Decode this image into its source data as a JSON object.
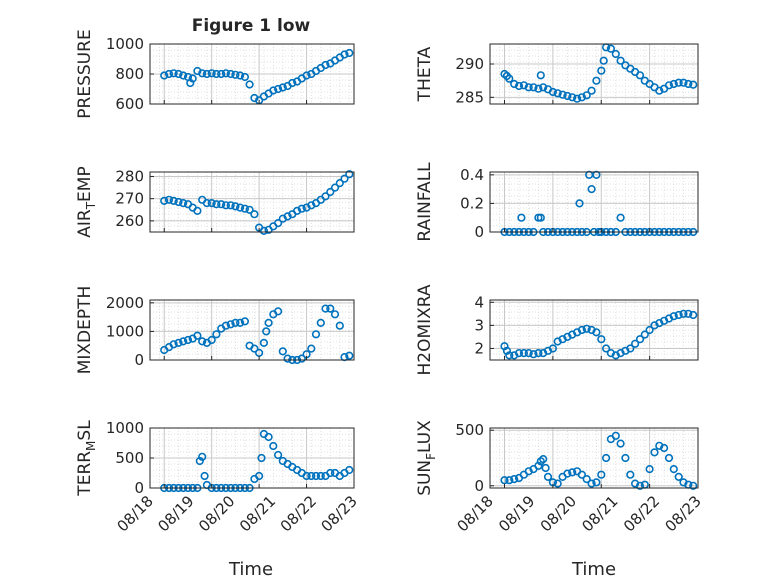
{
  "figure": {
    "title": "Figure 1 low",
    "xtick_labels": [
      "08/18",
      "08/19",
      "08/20",
      "08/21",
      "08/22",
      "08/23"
    ],
    "xlabel": "Time",
    "marker_color": "#0072BD"
  },
  "chart_data": [
    {
      "type": "scatter",
      "ylabel": "PRESSURE",
      "ylim": [
        600,
        1000
      ],
      "yticks": [
        600,
        800,
        1000
      ],
      "xlim": [
        0.7,
        5
      ],
      "x": [
        1.0,
        1.1,
        1.2,
        1.3,
        1.4,
        1.5,
        1.55,
        1.6,
        1.7,
        1.8,
        1.9,
        2.0,
        2.1,
        2.2,
        2.3,
        2.4,
        2.5,
        2.6,
        2.7,
        2.8,
        2.9,
        3.0,
        3.1,
        3.2,
        3.3,
        3.4,
        3.5,
        3.6,
        3.7,
        3.8,
        3.9,
        4.0,
        4.1,
        4.2,
        4.3,
        4.4,
        4.5,
        4.6,
        4.7,
        4.8,
        4.9
      ],
      "y": [
        790,
        800,
        805,
        800,
        790,
        780,
        740,
        770,
        820,
        805,
        800,
        805,
        800,
        800,
        805,
        800,
        795,
        790,
        780,
        730,
        640,
        625,
        650,
        670,
        690,
        700,
        710,
        720,
        740,
        750,
        770,
        790,
        800,
        820,
        840,
        860,
        870,
        890,
        910,
        930,
        940
      ]
    },
    {
      "type": "scatter",
      "ylabel": "THETA",
      "ylim": [
        284,
        293
      ],
      "yticks": [
        285,
        290
      ],
      "xlim": [
        0.7,
        5
      ],
      "x": [
        1.0,
        1.05,
        1.1,
        1.2,
        1.3,
        1.4,
        1.5,
        1.6,
        1.7,
        1.75,
        1.8,
        1.9,
        2.0,
        2.1,
        2.2,
        2.3,
        2.4,
        2.5,
        2.6,
        2.7,
        2.8,
        2.9,
        3.0,
        3.05,
        3.1,
        3.2,
        3.3,
        3.4,
        3.5,
        3.6,
        3.7,
        3.8,
        3.9,
        4.0,
        4.1,
        4.2,
        4.3,
        4.4,
        4.5,
        4.6,
        4.7,
        4.8,
        4.9
      ],
      "y": [
        288.5,
        288.2,
        287.8,
        287.0,
        286.7,
        286.8,
        286.5,
        286.5,
        286.3,
        288.3,
        286.5,
        286.2,
        285.8,
        285.6,
        285.4,
        285.2,
        285.0,
        284.8,
        285.0,
        285.3,
        286.0,
        287.5,
        289.0,
        290.5,
        292.5,
        292.3,
        291.5,
        290.5,
        289.8,
        289.3,
        288.8,
        288.3,
        287.5,
        287.0,
        286.5,
        286.0,
        286.3,
        286.8,
        287.0,
        287.2,
        287.2,
        287.0,
        286.9
      ]
    },
    {
      "type": "scatter",
      "ylabel": "AIR_TEMP",
      "ylim": [
        255,
        282
      ],
      "yticks": [
        260,
        270,
        280
      ],
      "xlim": [
        0.7,
        5
      ],
      "x": [
        1.0,
        1.1,
        1.2,
        1.3,
        1.4,
        1.5,
        1.6,
        1.7,
        1.8,
        1.9,
        2.0,
        2.1,
        2.2,
        2.3,
        2.4,
        2.5,
        2.6,
        2.7,
        2.8,
        2.9,
        3.0,
        3.1,
        3.2,
        3.3,
        3.4,
        3.5,
        3.6,
        3.7,
        3.8,
        3.9,
        4.0,
        4.1,
        4.2,
        4.3,
        4.4,
        4.5,
        4.6,
        4.7,
        4.8,
        4.9
      ],
      "y": [
        269,
        269.5,
        269,
        268.5,
        268,
        267.5,
        266,
        264.5,
        269.5,
        268,
        268,
        267.5,
        267.5,
        267,
        267,
        266.5,
        266,
        265.5,
        265,
        263,
        257,
        255.5,
        256,
        257.5,
        259,
        261,
        262,
        263,
        264.5,
        265.5,
        266,
        267,
        268,
        269.5,
        271,
        273,
        275,
        277,
        279,
        281
      ]
    },
    {
      "type": "scatter",
      "ylabel": "RAINFALL",
      "ylim": [
        0,
        0.42
      ],
      "yticks": [
        0,
        0.2,
        0.4
      ],
      "xlim": [
        0.7,
        5
      ],
      "x": [
        1.0,
        1.1,
        1.2,
        1.3,
        1.35,
        1.4,
        1.5,
        1.6,
        1.7,
        1.75,
        1.8,
        1.9,
        2.0,
        2.1,
        2.2,
        2.3,
        2.4,
        2.5,
        2.55,
        2.6,
        2.7,
        2.75,
        2.8,
        2.85,
        2.9,
        2.95,
        3.0,
        3.1,
        3.2,
        3.3,
        3.4,
        3.5,
        3.6,
        3.7,
        3.8,
        3.9,
        4.0,
        4.1,
        4.2,
        4.3,
        4.4,
        4.5,
        4.6,
        4.7,
        4.8,
        4.9
      ],
      "y": [
        0,
        0,
        0,
        0,
        0.1,
        0,
        0,
        0,
        0.1,
        0.1,
        0,
        0,
        0,
        0,
        0,
        0,
        0,
        0,
        0.2,
        0,
        0,
        0.4,
        0.3,
        0,
        0.4,
        0,
        0,
        0,
        0,
        0,
        0.1,
        0,
        0,
        0,
        0,
        0,
        0,
        0,
        0,
        0,
        0,
        0,
        0,
        0,
        0,
        0
      ]
    },
    {
      "type": "scatter",
      "ylabel": "MIXDEPTH",
      "ylim": [
        0,
        2100
      ],
      "yticks": [
        0,
        1000,
        2000
      ],
      "xlim": [
        0.7,
        5
      ],
      "x": [
        1.0,
        1.1,
        1.2,
        1.3,
        1.4,
        1.5,
        1.6,
        1.7,
        1.8,
        1.9,
        2.0,
        2.1,
        2.2,
        2.3,
        2.4,
        2.5,
        2.6,
        2.7,
        2.8,
        2.9,
        3.0,
        3.1,
        3.15,
        3.2,
        3.3,
        3.4,
        3.5,
        3.6,
        3.7,
        3.8,
        3.9,
        4.0,
        4.1,
        4.2,
        4.3,
        4.4,
        4.5,
        4.6,
        4.7,
        4.8,
        4.9
      ],
      "y": [
        350,
        450,
        550,
        600,
        650,
        700,
        750,
        850,
        650,
        600,
        700,
        900,
        1100,
        1200,
        1250,
        1300,
        1300,
        1350,
        500,
        400,
        250,
        600,
        1000,
        1300,
        1600,
        1700,
        300,
        50,
        0,
        0,
        50,
        200,
        400,
        900,
        1300,
        1800,
        1800,
        1600,
        1200,
        100,
        150
      ]
    },
    {
      "type": "scatter",
      "ylabel": "H2OMIXRA",
      "ylim": [
        1.5,
        4.1
      ],
      "yticks": [
        2,
        3,
        4
      ],
      "xlim": [
        0.7,
        5
      ],
      "x": [
        1.0,
        1.05,
        1.1,
        1.2,
        1.3,
        1.4,
        1.5,
        1.6,
        1.7,
        1.8,
        1.9,
        2.0,
        2.1,
        2.2,
        2.3,
        2.4,
        2.5,
        2.6,
        2.7,
        2.8,
        2.9,
        3.0,
        3.1,
        3.2,
        3.3,
        3.4,
        3.5,
        3.6,
        3.7,
        3.8,
        3.9,
        4.0,
        4.1,
        4.2,
        4.3,
        4.4,
        4.5,
        4.6,
        4.7,
        4.8,
        4.9
      ],
      "y": [
        2.1,
        1.9,
        1.7,
        1.7,
        1.8,
        1.8,
        1.8,
        1.75,
        1.8,
        1.8,
        1.9,
        2.0,
        2.3,
        2.4,
        2.5,
        2.6,
        2.7,
        2.8,
        2.85,
        2.8,
        2.7,
        2.4,
        2.0,
        1.8,
        1.7,
        1.8,
        1.9,
        2.0,
        2.2,
        2.4,
        2.6,
        2.8,
        3.0,
        3.1,
        3.2,
        3.3,
        3.4,
        3.45,
        3.5,
        3.5,
        3.45
      ]
    },
    {
      "type": "scatter",
      "ylabel": "TERR_MSL",
      "ylim": [
        0,
        1000
      ],
      "yticks": [
        0,
        500,
        1000
      ],
      "xlim": [
        0.7,
        5
      ],
      "x": [
        1.0,
        1.1,
        1.2,
        1.3,
        1.4,
        1.5,
        1.6,
        1.7,
        1.75,
        1.8,
        1.85,
        1.9,
        2.0,
        2.1,
        2.2,
        2.3,
        2.4,
        2.5,
        2.6,
        2.7,
        2.8,
        2.9,
        3.0,
        3.05,
        3.1,
        3.2,
        3.3,
        3.4,
        3.5,
        3.6,
        3.7,
        3.8,
        3.9,
        4.0,
        4.1,
        4.2,
        4.3,
        4.4,
        4.5,
        4.6,
        4.7,
        4.8,
        4.9
      ],
      "y": [
        0,
        0,
        0,
        0,
        0,
        0,
        0,
        0,
        450,
        520,
        200,
        50,
        0,
        0,
        0,
        0,
        0,
        0,
        0,
        0,
        0,
        150,
        200,
        500,
        900,
        850,
        700,
        550,
        450,
        400,
        350,
        300,
        250,
        200,
        200,
        200,
        200,
        200,
        250,
        250,
        200,
        250,
        300
      ]
    },
    {
      "type": "scatter",
      "ylabel": "SUN_FLUX",
      "ylim": [
        -20,
        520
      ],
      "yticks": [
        0,
        500
      ],
      "xlim": [
        0.7,
        5
      ],
      "x": [
        1.0,
        1.1,
        1.2,
        1.3,
        1.4,
        1.5,
        1.6,
        1.7,
        1.75,
        1.8,
        1.85,
        1.9,
        2.0,
        2.1,
        2.2,
        2.3,
        2.4,
        2.5,
        2.6,
        2.7,
        2.8,
        2.9,
        3.0,
        3.1,
        3.2,
        3.3,
        3.4,
        3.5,
        3.6,
        3.7,
        3.8,
        3.9,
        4.0,
        4.1,
        4.2,
        4.3,
        4.4,
        4.5,
        4.6,
        4.7,
        4.8,
        4.9
      ],
      "y": [
        50,
        50,
        60,
        70,
        100,
        130,
        150,
        180,
        220,
        240,
        160,
        80,
        30,
        20,
        80,
        110,
        120,
        130,
        100,
        60,
        20,
        30,
        100,
        250,
        420,
        450,
        380,
        250,
        100,
        20,
        0,
        10,
        150,
        300,
        360,
        340,
        250,
        150,
        80,
        30,
        10,
        0
      ]
    }
  ]
}
